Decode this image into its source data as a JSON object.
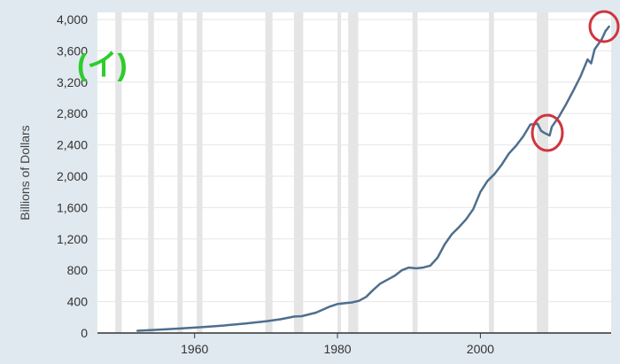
{
  "chart_data": {
    "type": "line",
    "ylabel": "Billions of Dollars",
    "xlabel": "",
    "xlim": [
      1946.4,
      2018.3
    ],
    "ylim": [
      0,
      4000
    ],
    "yticks": [
      0,
      400,
      800,
      1200,
      1600,
      2000,
      2400,
      2800,
      3200,
      3600,
      4000
    ],
    "ytick_labels": [
      "0",
      "400",
      "800",
      "1,200",
      "1,600",
      "2,000",
      "2,400",
      "2,800",
      "3,200",
      "3,600",
      "4,000"
    ],
    "xticks": [
      1960,
      1980,
      2000
    ],
    "xtick_labels": [
      "1960",
      "1980",
      "2000"
    ],
    "grid": "horizontal",
    "line_color": "#4e6f8e",
    "recession_shading_color": "#e5e5e5",
    "recessions": [
      [
        1948.9,
        1949.8
      ],
      [
        1953.5,
        1954.3
      ],
      [
        1957.6,
        1958.3
      ],
      [
        1960.3,
        1961.1
      ],
      [
        1969.9,
        1970.9
      ],
      [
        1973.9,
        1975.2
      ],
      [
        1980.0,
        1980.5
      ],
      [
        1981.5,
        1982.9
      ],
      [
        1990.5,
        1991.2
      ],
      [
        2001.2,
        2001.9
      ],
      [
        2007.9,
        2009.5
      ]
    ],
    "series": [
      {
        "x": [
          1952,
          1955,
          1958,
          1961,
          1964,
          1967,
          1970,
          1972,
          1974,
          1975,
          1977,
          1979,
          1980,
          1982,
          1983,
          1984,
          1985,
          1986,
          1987,
          1988,
          1989,
          1990,
          1991,
          1992,
          1993,
          1994,
          1995,
          1996,
          1997,
          1998,
          1999,
          2000,
          2001,
          2002,
          2003,
          2004,
          2005,
          2006,
          2007,
          2008,
          2008.5,
          2009,
          2009.7,
          2010,
          2011,
          2012,
          2013,
          2014,
          2015,
          2015.5,
          2016,
          2017,
          2017.5,
          2018
        ],
        "y": [
          28,
          42,
          58,
          75,
          95,
          120,
          150,
          175,
          210,
          215,
          260,
          340,
          370,
          390,
          410,
          460,
          550,
          630,
          680,
          730,
          800,
          835,
          825,
          835,
          860,
          960,
          1130,
          1260,
          1350,
          1450,
          1580,
          1800,
          1940,
          2030,
          2150,
          2290,
          2390,
          2510,
          2660,
          2670,
          2580,
          2550,
          2520,
          2630,
          2760,
          2920,
          3090,
          3270,
          3490,
          3440,
          3620,
          3750,
          3850,
          3910
        ]
      }
    ]
  },
  "annotation": {
    "label": "(イ)",
    "color": "#2ecc2e",
    "circle_color": "#d0343e"
  }
}
